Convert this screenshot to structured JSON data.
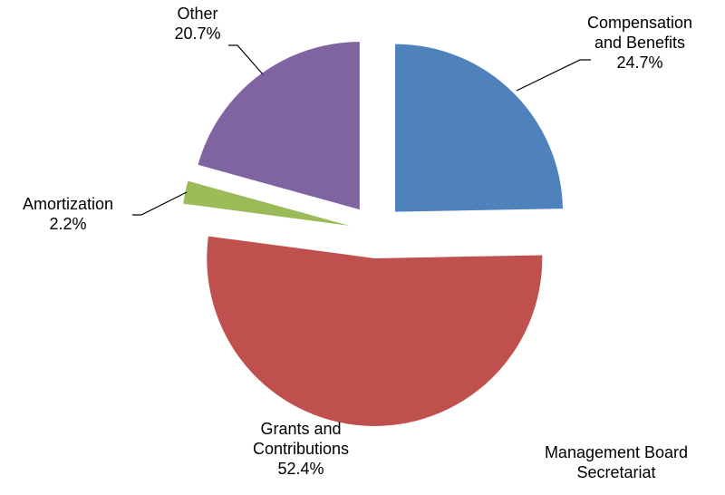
{
  "chart_data": {
    "type": "pie",
    "categories": [
      "Compensation and Benefits",
      "Grants and Contributions",
      "Amortization",
      "Other"
    ],
    "values": [
      24.7,
      52.4,
      2.2,
      20.7
    ],
    "value_labels": [
      "24.7%",
      "52.4%",
      "2.2%",
      "20.7%"
    ],
    "colors": [
      "#4f81bd",
      "#c0504d",
      "#9bbb59",
      "#8064a2"
    ],
    "annotation": "Management Board Secretariat"
  }
}
